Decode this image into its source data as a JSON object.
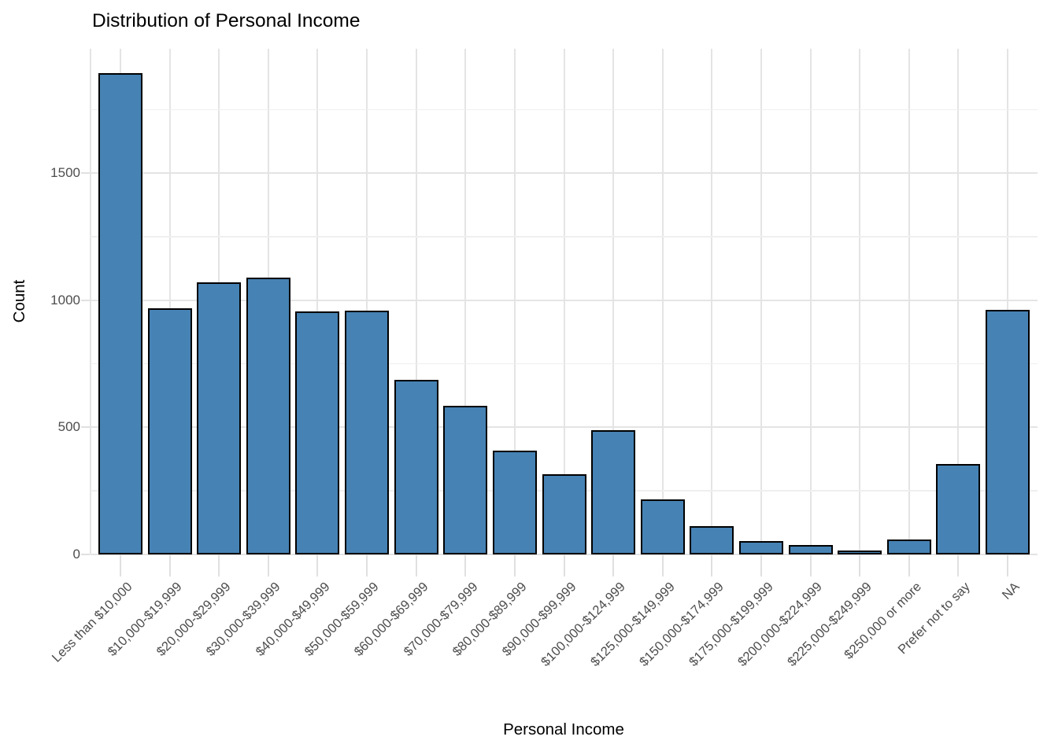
{
  "chart_data": {
    "type": "bar",
    "title": "Distribution of Personal Income",
    "xlabel": "Personal Income",
    "ylabel": "Count",
    "categories": [
      "Less than $10,000",
      "$10,000-$19,999",
      "$20,000-$29,999",
      "$30,000-$39,999",
      "$40,000-$49,999",
      "$50,000-$59,999",
      "$60,000-$69,999",
      "$70,000-$79,999",
      "$80,000-$89,999",
      "$90,000-$99,999",
      "$100,000-$124,999",
      "$125,000-$149,999",
      "$150,000-$174,999",
      "$175,000-$199,999",
      "$200,000-$224,999",
      "$225,000-$249,999",
      "$250,000 or more",
      "Prefer not to say",
      "NA"
    ],
    "values": [
      1893,
      968,
      1072,
      1088,
      955,
      960,
      686,
      585,
      408,
      315,
      488,
      218,
      112,
      52,
      36,
      13,
      60,
      355,
      962
    ],
    "ylim": [
      0,
      1990
    ],
    "yticks": [
      0,
      500,
      1000,
      1500
    ],
    "yticks_minor": [
      250,
      750,
      1250,
      1750
    ],
    "grid": true,
    "legend_position": "none",
    "bar_fill": "#4682B4",
    "bar_stroke": "#000000",
    "grid_major_color": "#E4E4E4",
    "grid_minor_color": "#EFEFEF",
    "tick_mark_color": "#E0E0E0",
    "tick_label_color": "#4D4D4D",
    "title_color": "#000000"
  }
}
